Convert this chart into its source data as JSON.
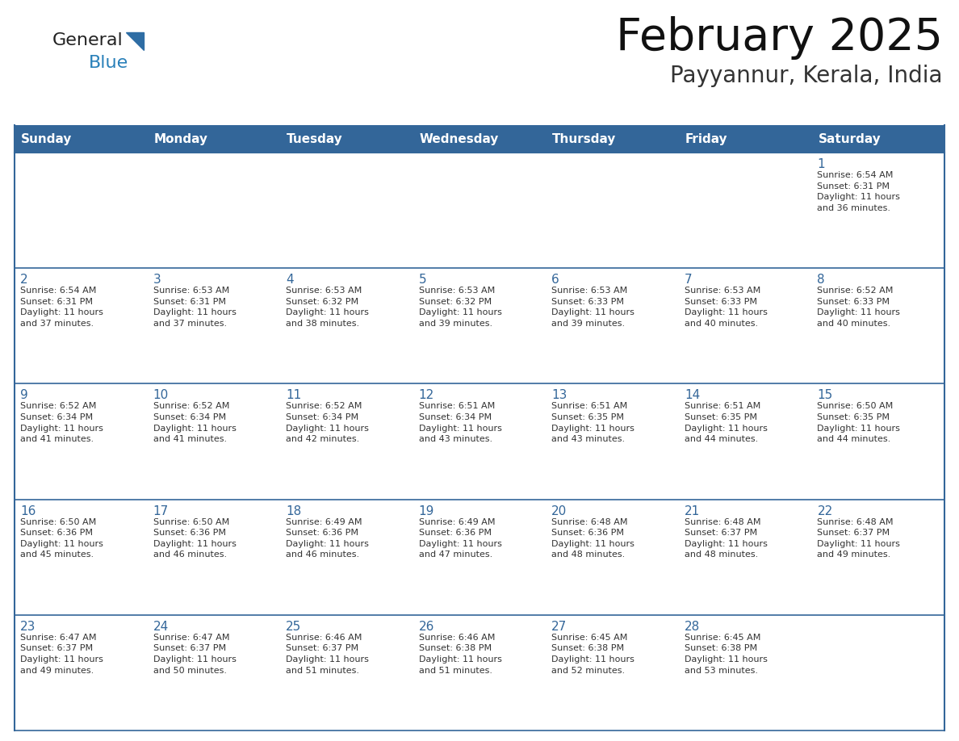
{
  "title": "February 2025",
  "subtitle": "Payyannur, Kerala, India",
  "header_bg": "#336699",
  "header_text": "#FFFFFF",
  "grid_line_color": "#336699",
  "day_number_color": "#336699",
  "info_text_color": "#333333",
  "row_separator_color": "#336699",
  "days_of_week": [
    "Sunday",
    "Monday",
    "Tuesday",
    "Wednesday",
    "Thursday",
    "Friday",
    "Saturday"
  ],
  "calendar_data": [
    [
      {
        "day": "",
        "info": ""
      },
      {
        "day": "",
        "info": ""
      },
      {
        "day": "",
        "info": ""
      },
      {
        "day": "",
        "info": ""
      },
      {
        "day": "",
        "info": ""
      },
      {
        "day": "",
        "info": ""
      },
      {
        "day": "1",
        "info": "Sunrise: 6:54 AM\nSunset: 6:31 PM\nDaylight: 11 hours\nand 36 minutes."
      }
    ],
    [
      {
        "day": "2",
        "info": "Sunrise: 6:54 AM\nSunset: 6:31 PM\nDaylight: 11 hours\nand 37 minutes."
      },
      {
        "day": "3",
        "info": "Sunrise: 6:53 AM\nSunset: 6:31 PM\nDaylight: 11 hours\nand 37 minutes."
      },
      {
        "day": "4",
        "info": "Sunrise: 6:53 AM\nSunset: 6:32 PM\nDaylight: 11 hours\nand 38 minutes."
      },
      {
        "day": "5",
        "info": "Sunrise: 6:53 AM\nSunset: 6:32 PM\nDaylight: 11 hours\nand 39 minutes."
      },
      {
        "day": "6",
        "info": "Sunrise: 6:53 AM\nSunset: 6:33 PM\nDaylight: 11 hours\nand 39 minutes."
      },
      {
        "day": "7",
        "info": "Sunrise: 6:53 AM\nSunset: 6:33 PM\nDaylight: 11 hours\nand 40 minutes."
      },
      {
        "day": "8",
        "info": "Sunrise: 6:52 AM\nSunset: 6:33 PM\nDaylight: 11 hours\nand 40 minutes."
      }
    ],
    [
      {
        "day": "9",
        "info": "Sunrise: 6:52 AM\nSunset: 6:34 PM\nDaylight: 11 hours\nand 41 minutes."
      },
      {
        "day": "10",
        "info": "Sunrise: 6:52 AM\nSunset: 6:34 PM\nDaylight: 11 hours\nand 41 minutes."
      },
      {
        "day": "11",
        "info": "Sunrise: 6:52 AM\nSunset: 6:34 PM\nDaylight: 11 hours\nand 42 minutes."
      },
      {
        "day": "12",
        "info": "Sunrise: 6:51 AM\nSunset: 6:34 PM\nDaylight: 11 hours\nand 43 minutes."
      },
      {
        "day": "13",
        "info": "Sunrise: 6:51 AM\nSunset: 6:35 PM\nDaylight: 11 hours\nand 43 minutes."
      },
      {
        "day": "14",
        "info": "Sunrise: 6:51 AM\nSunset: 6:35 PM\nDaylight: 11 hours\nand 44 minutes."
      },
      {
        "day": "15",
        "info": "Sunrise: 6:50 AM\nSunset: 6:35 PM\nDaylight: 11 hours\nand 44 minutes."
      }
    ],
    [
      {
        "day": "16",
        "info": "Sunrise: 6:50 AM\nSunset: 6:36 PM\nDaylight: 11 hours\nand 45 minutes."
      },
      {
        "day": "17",
        "info": "Sunrise: 6:50 AM\nSunset: 6:36 PM\nDaylight: 11 hours\nand 46 minutes."
      },
      {
        "day": "18",
        "info": "Sunrise: 6:49 AM\nSunset: 6:36 PM\nDaylight: 11 hours\nand 46 minutes."
      },
      {
        "day": "19",
        "info": "Sunrise: 6:49 AM\nSunset: 6:36 PM\nDaylight: 11 hours\nand 47 minutes."
      },
      {
        "day": "20",
        "info": "Sunrise: 6:48 AM\nSunset: 6:36 PM\nDaylight: 11 hours\nand 48 minutes."
      },
      {
        "day": "21",
        "info": "Sunrise: 6:48 AM\nSunset: 6:37 PM\nDaylight: 11 hours\nand 48 minutes."
      },
      {
        "day": "22",
        "info": "Sunrise: 6:48 AM\nSunset: 6:37 PM\nDaylight: 11 hours\nand 49 minutes."
      }
    ],
    [
      {
        "day": "23",
        "info": "Sunrise: 6:47 AM\nSunset: 6:37 PM\nDaylight: 11 hours\nand 49 minutes."
      },
      {
        "day": "24",
        "info": "Sunrise: 6:47 AM\nSunset: 6:37 PM\nDaylight: 11 hours\nand 50 minutes."
      },
      {
        "day": "25",
        "info": "Sunrise: 6:46 AM\nSunset: 6:37 PM\nDaylight: 11 hours\nand 51 minutes."
      },
      {
        "day": "26",
        "info": "Sunrise: 6:46 AM\nSunset: 6:38 PM\nDaylight: 11 hours\nand 51 minutes."
      },
      {
        "day": "27",
        "info": "Sunrise: 6:45 AM\nSunset: 6:38 PM\nDaylight: 11 hours\nand 52 minutes."
      },
      {
        "day": "28",
        "info": "Sunrise: 6:45 AM\nSunset: 6:38 PM\nDaylight: 11 hours\nand 53 minutes."
      },
      {
        "day": "",
        "info": ""
      }
    ]
  ],
  "logo_color_general": "#222222",
  "logo_color_blue": "#2980B9",
  "logo_triangle_color": "#2E6DA4",
  "fig_width": 11.88,
  "fig_height": 9.18,
  "dpi": 100
}
